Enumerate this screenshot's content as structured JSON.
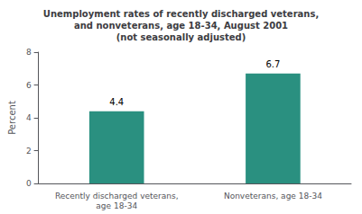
{
  "chart_data": {
    "type": "bar",
    "title": "Unemployment rates of recently discharged veterans,\nand nonveterans, age 18-34, August 2001\n(not seasonally adjusted)",
    "categories": [
      "Recently discharged veterans,\nage 18-34",
      "Nonveterans, age 18-34"
    ],
    "values": [
      4.4,
      6.7
    ],
    "color": "#2a9080",
    "ylabel": "Percent",
    "ylim": [
      0,
      8
    ],
    "yticks": [
      0,
      2,
      4,
      6,
      8
    ],
    "grid": false,
    "data_labels": true
  }
}
